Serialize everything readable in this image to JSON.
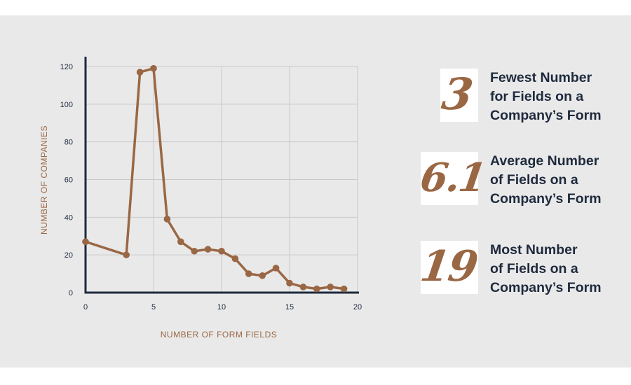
{
  "chart_data": {
    "type": "line",
    "xlabel": "NUMBER OF FORM FIELDS",
    "ylabel": "NUMBER OF COMPANIES",
    "xlim": [
      0,
      20
    ],
    "ylim": [
      0,
      120
    ],
    "xticks": [
      0,
      5,
      10,
      15,
      20
    ],
    "yticks": [
      0,
      20,
      40,
      60,
      80,
      100,
      120
    ],
    "grid": true,
    "series": [
      {
        "name": "Companies",
        "x": [
          0,
          3,
          4,
          5,
          6,
          7,
          8,
          9,
          10,
          11,
          12,
          13,
          14,
          15,
          16,
          17,
          18,
          19
        ],
        "values": [
          27,
          20,
          117,
          119,
          39,
          27,
          22,
          23,
          22,
          18,
          10,
          9,
          13,
          5,
          3,
          2,
          3,
          2
        ]
      }
    ],
    "colors": {
      "line": "#9a6744",
      "axis": "#1e2a3d",
      "grid": "#c9c9c9",
      "label": "#9a6744",
      "tick": "#1e2a3d"
    }
  },
  "stats": [
    {
      "value": "3",
      "label_lines": [
        "Fewest Number",
        "for Fields on a",
        "Company’s Form"
      ]
    },
    {
      "value": "6.1",
      "label_lines": [
        "Average Number",
        "of Fields on a",
        "Company’s Form"
      ]
    },
    {
      "value": "19",
      "label_lines": [
        "Most Number",
        "of Fields on a",
        "Company’s Form"
      ]
    }
  ]
}
